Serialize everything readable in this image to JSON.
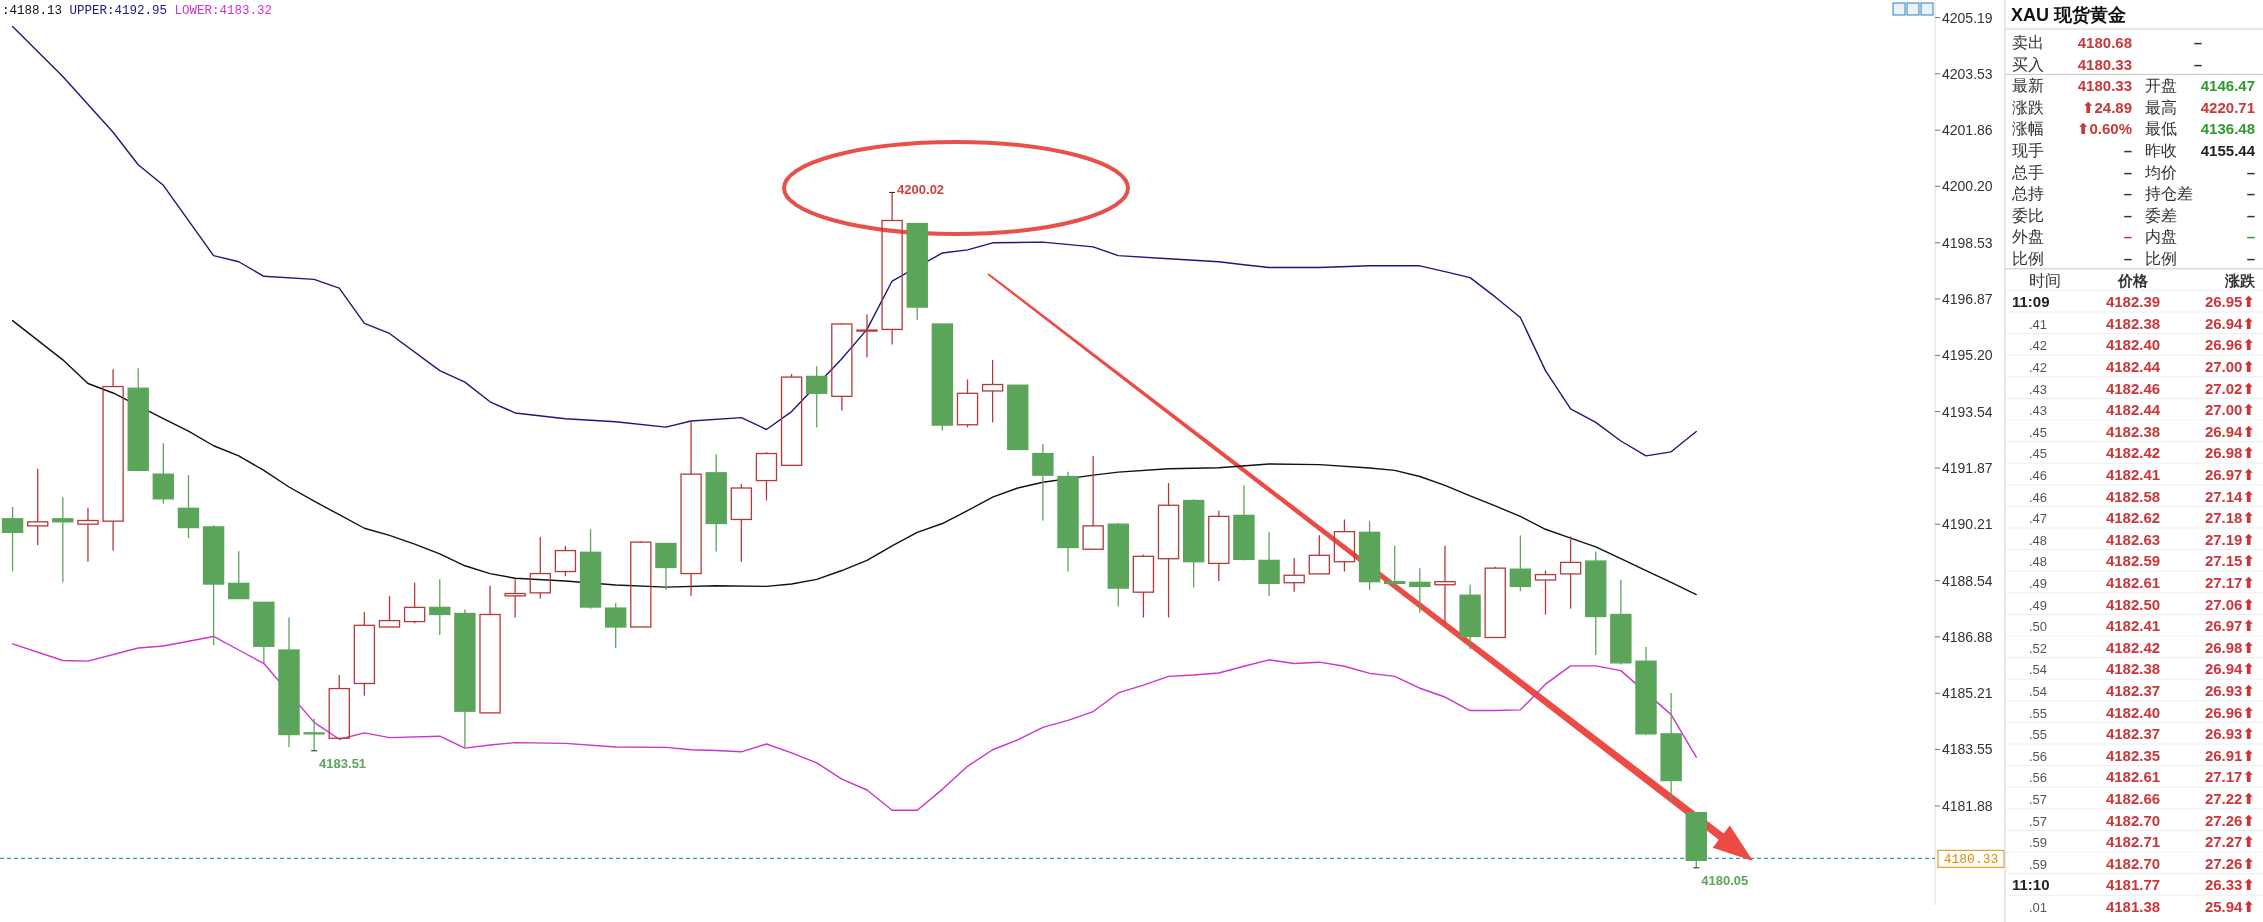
{
  "chart_data": [
    {
      "type": "candlestick",
      "categories": [
        null,
        null,
        null,
        null,
        null,
        null,
        null,
        null,
        null,
        null,
        null,
        null,
        null,
        null,
        null,
        null,
        null,
        null,
        null,
        null,
        null,
        null,
        null,
        null,
        null,
        null,
        null,
        null,
        null,
        null,
        null,
        null,
        null,
        null,
        null,
        null,
        null,
        null,
        null,
        null,
        null,
        null,
        null,
        null,
        null,
        null,
        null,
        null,
        null,
        null,
        null,
        null,
        null,
        null,
        null,
        null,
        null,
        null,
        null,
        null,
        null,
        null,
        null,
        null,
        null,
        null,
        null,
        null,
        null,
        null,
        null,
        null,
        null,
        null,
        null,
        null,
        null
      ],
      "ohlc": [
        [
          4190.37,
          4190.72,
          4188.81,
          4189.97
        ],
        [
          4190.16,
          4191.85,
          4189.59,
          4190.28
        ],
        [
          4190.37,
          4191.01,
          4188.49,
          4190.28
        ],
        [
          4190.21,
          4190.7,
          4189.1,
          4190.32
        ],
        [
          4190.3,
          4194.79,
          4189.43,
          4194.28
        ],
        [
          4194.23,
          4194.82,
          4191.8,
          4191.8
        ],
        [
          4191.69,
          4192.6,
          4190.82,
          4190.96
        ],
        [
          4190.68,
          4191.66,
          4189.8,
          4190.11
        ],
        [
          4190.13,
          4190.18,
          4186.63,
          4188.44
        ],
        [
          4188.46,
          4189.41,
          4188.01,
          4188.01
        ],
        [
          4187.9,
          4187.9,
          4186.09,
          4186.6
        ],
        [
          4186.49,
          4187.45,
          4183.62,
          4183.99
        ],
        [
          4184.04,
          4184.46,
          4183.51,
          4184.03
        ],
        [
          4183.88,
          4185.75,
          4183.88,
          4185.35
        ],
        [
          4185.5,
          4187.61,
          4185.14,
          4187.22
        ],
        [
          4187.17,
          4188.09,
          4187.17,
          4187.36
        ],
        [
          4187.33,
          4188.48,
          4187.28,
          4187.75
        ],
        [
          4187.75,
          4188.58,
          4186.93,
          4187.54
        ],
        [
          4187.57,
          4187.69,
          4183.6,
          4184.68
        ],
        [
          4184.63,
          4188.39,
          4184.63,
          4187.54
        ],
        [
          4188.09,
          4188.58,
          4187.45,
          4188.16
        ],
        [
          4188.18,
          4189.83,
          4188.01,
          4188.75
        ],
        [
          4188.81,
          4189.57,
          4188.67,
          4189.43
        ],
        [
          4189.38,
          4190.06,
          4187.71,
          4187.76
        ],
        [
          4187.73,
          4187.88,
          4186.55,
          4187.17
        ],
        [
          4187.17,
          4189.71,
          4187.17,
          4189.68
        ],
        [
          4189.64,
          4189.64,
          4188.27,
          4188.93
        ],
        [
          4188.75,
          4193.29,
          4188.09,
          4191.69
        ],
        [
          4191.73,
          4192.28,
          4189.4,
          4190.23
        ],
        [
          4190.35,
          4191.4,
          4189.1,
          4191.28
        ],
        [
          4191.5,
          4192.34,
          4190.91,
          4192.3
        ],
        [
          4191.95,
          4194.65,
          4191.95,
          4194.56
        ],
        [
          4194.58,
          4194.88,
          4193.07,
          4194.08
        ],
        [
          4193.99,
          4196.16,
          4193.57,
          4196.13
        ],
        [
          4195.95,
          4196.41,
          4195.14,
          4195.95
        ],
        [
          4195.97,
          4200.02,
          4195.52,
          4199.19
        ],
        [
          4199.1,
          4199.1,
          4196.25,
          4196.63
        ],
        [
          4196.13,
          4196.13,
          4192.98,
          4193.14
        ],
        [
          4193.15,
          4194.49,
          4193.07,
          4194.08
        ],
        [
          4194.15,
          4195.07,
          4193.22,
          4194.34
        ],
        [
          4194.32,
          4194.32,
          4192.42,
          4192.42
        ],
        [
          4192.3,
          4192.58,
          4190.32,
          4191.66
        ],
        [
          4191.62,
          4191.76,
          4188.81,
          4189.52
        ],
        [
          4189.47,
          4192.23,
          4189.47,
          4190.16
        ],
        [
          4190.21,
          4190.25,
          4187.78,
          4188.32
        ],
        [
          4188.2,
          4189.31,
          4187.45,
          4189.26
        ],
        [
          4189.19,
          4191.43,
          4187.45,
          4190.77
        ],
        [
          4190.91,
          4190.95,
          4188.34,
          4189.1
        ],
        [
          4189.05,
          4190.61,
          4188.53,
          4190.44
        ],
        [
          4190.47,
          4191.36,
          4189.14,
          4189.17
        ],
        [
          4189.14,
          4189.97,
          4188.09,
          4188.46
        ],
        [
          4188.48,
          4189.21,
          4188.21,
          4188.7
        ],
        [
          4188.74,
          4189.88,
          4188.74,
          4189.29
        ],
        [
          4189.1,
          4190.35,
          4188.81,
          4189.99
        ],
        [
          4189.97,
          4190.3,
          4188.27,
          4188.51
        ],
        [
          4188.51,
          4189.57,
          4188.32,
          4188.46
        ],
        [
          4188.49,
          4188.91,
          4187.59,
          4188.37
        ],
        [
          4188.42,
          4189.57,
          4187.28,
          4188.51
        ],
        [
          4188.11,
          4188.42,
          4186.51,
          4186.89
        ],
        [
          4186.86,
          4188.95,
          4186.86,
          4188.91
        ],
        [
          4188.88,
          4189.88,
          4188.23,
          4188.37
        ],
        [
          4188.56,
          4188.84,
          4187.54,
          4188.72
        ],
        [
          4188.74,
          4189.85,
          4187.71,
          4189.08
        ],
        [
          4189.12,
          4189.4,
          4186.34,
          4187.48
        ],
        [
          4187.54,
          4188.56,
          4186.06,
          4186.11
        ],
        [
          4186.16,
          4186.58,
          4183.97,
          4184.01
        ],
        [
          4184.01,
          4185.22,
          4181.97,
          4182.63
        ],
        [
          4181.68,
          4181.68,
          4180.05,
          4180.27
        ],
        null,
        null,
        null,
        null,
        null,
        null,
        null,
        null,
        null
      ],
      "series": [
        {
          "type": "line",
          "color": "#111111",
          "values": [
            4196.23,
            null,
            4195.07,
            4194.37,
            4194.09,
            null,
            4193.33,
            4192.96,
            4192.53,
            4192.23,
            4191.8,
            4191.31,
            4190.89,
            4190.49,
            4190.09,
            4189.88,
            4189.62,
            4189.33,
            4188.98,
            4188.75,
            4188.61,
            null,
            4188.53,
            null,
            4188.41,
            null,
            4188.35,
            null,
            4188.39,
            null,
            4188.37,
            4188.44,
            4188.58,
            4188.84,
            4189.14,
            4189.57,
            4189.97,
            4190.23,
            4190.61,
            4191.01,
            4191.28,
            4191.45,
            null,
            4191.66,
            4191.75,
            null,
            4191.85,
            null,
            4191.88,
            null,
            4191.99,
            null,
            4191.97,
            null,
            4191.87,
            4191.8,
            4191.62,
            4191.36,
            4191.05,
            4190.75,
            4190.44,
            4190.06,
            4189.8,
            4189.54,
            4189.19,
            4188.84,
            4188.49,
            4188.13,
            null,
            null,
            null,
            null,
            null,
            null,
            null,
            null,
            null
          ]
        },
        {
          "type": "line",
          "color": "#1a1a7a",
          "values": [
            4204.93,
            null,
            4203.45,
            null,
            4201.8,
            4200.84,
            4200.23,
            null,
            4198.15,
            4197.97,
            4197.54,
            null,
            4197.45,
            4197.19,
            4196.15,
            4195.85,
            null,
            4194.75,
            4194.41,
            4193.83,
            4193.5,
            null,
            4193.33,
            null,
            4193.24,
            null,
            4193.08,
            4193.26,
            null,
            4193.36,
            4193.01,
            4193.54,
            null,
            4195.1,
            4195.97,
            4197.4,
            null,
            4198.23,
            4198.32,
            4198.53,
            null,
            4198.55,
            null,
            4198.41,
            4198.15,
            null,
            4198.06,
            null,
            4197.97,
            4197.88,
            4197.8,
            null,
            4197.8,
            null,
            4197.85,
            4197.85,
            4197.85,
            4197.68,
            4197.5,
            4196.93,
            4196.32,
            4194.75,
            4193.62,
            4193.22,
            4192.67,
            4192.23,
            4192.35,
            4192.95,
            null,
            null,
            null,
            null,
            null,
            null,
            null,
            null,
            null
          ]
        },
        {
          "type": "line",
          "color": "#cc33cc",
          "values": [
            4186.67,
            null,
            4186.18,
            4186.16,
            null,
            4186.55,
            4186.61,
            null,
            4186.89,
            4186.49,
            4186.09,
            null,
            4184.35,
            4183.85,
            4184.04,
            4183.9,
            null,
            4183.94,
            4183.59,
            4183.68,
            4183.75,
            null,
            4183.73,
            null,
            4183.62,
            null,
            4183.61,
            4183.54,
            4183.52,
            4183.48,
            4183.71,
            4183.45,
            4183.15,
            4182.67,
            4182.35,
            4181.75,
            4181.75,
            4182.37,
            4183.05,
            4183.54,
            4183.83,
            4184.2,
            4184.41,
            4184.67,
            4185.22,
            4185.45,
            4185.71,
            4185.75,
            4185.81,
            4186.01,
            4186.2,
            4186.09,
            4186.13,
            4186.01,
            4185.8,
            4185.71,
            4185.36,
            4185.1,
            4184.7,
            4184.7,
            4184.72,
            4185.48,
            4186.02,
            4186.02,
            4185.88,
            null,
            4184.58,
            4183.32,
            null,
            null,
            null,
            null,
            null,
            null,
            null,
            null,
            null
          ]
        }
      ],
      "ylim": [
        4178.95,
        4205.71
      ],
      "yticks": [
        4205.19,
        4203.53,
        4201.86,
        {
          "value": 4200.2,
          "label": "4200.20"
        },
        4198.53,
        4196.87,
        {
          "value": 4195.2,
          "label": "4195.20"
        },
        4193.54,
        4191.87,
        4190.21,
        4188.54,
        4186.88,
        4185.21,
        4183.55,
        4181.88
      ],
      "ref_lines": [
        {
          "axis": "y",
          "value": 4180.33,
          "label": "4180.33",
          "color": "#3a8fb7",
          "line_style": "dashed"
        }
      ],
      "annotations": [
        ":4188.13",
        "UPPER:4192.95",
        "LOWER:4183.32",
        "4200.02",
        "4183.51",
        "4180.05"
      ]
    },
    {
      "type": "other",
      "title": "XAU 现货黄金",
      "cell_labels": [
        [
          "卖出",
          "4180.68",
          "–"
        ],
        [
          "买入",
          "4180.33",
          "–"
        ],
        [
          "最新",
          "4180.33",
          "开盘",
          "4146.47"
        ],
        [
          "涨跌",
          "⬆24.89",
          "最高",
          "4220.71"
        ],
        [
          "涨幅",
          "⬆0.60%",
          "最低",
          "4136.48"
        ],
        [
          "现手",
          "–",
          "昨收",
          "4155.44"
        ],
        [
          "总手",
          "–",
          "均价",
          "–"
        ],
        [
          "总持",
          "–",
          "持仓差",
          "–"
        ],
        [
          "委比",
          "–",
          "委差",
          "–"
        ],
        [
          "外盘",
          "–",
          "内盘",
          "–"
        ],
        [
          "比例",
          "–",
          "比例",
          "–"
        ],
        [
          "时间",
          "价格",
          "涨跌"
        ],
        [
          "11:09",
          "4182.39",
          "26.95⬆"
        ],
        [
          ".41",
          "4182.38",
          "26.94⬆"
        ],
        [
          ".42",
          "4182.40",
          "26.96⬆"
        ],
        [
          ".42",
          "4182.44",
          "27.00⬆"
        ],
        [
          ".43",
          "4182.46",
          "27.02⬆"
        ],
        [
          ".43",
          "4182.44",
          "27.00⬆"
        ],
        [
          ".45",
          "4182.38",
          "26.94⬆"
        ],
        [
          ".45",
          "4182.42",
          "26.98⬆"
        ],
        [
          ".46",
          "4182.41",
          "26.97⬆"
        ],
        [
          ".46",
          "4182.58",
          "27.14⬆"
        ],
        [
          ".47",
          "4182.62",
          "27.18⬆"
        ],
        [
          ".48",
          "4182.63",
          "27.19⬆"
        ],
        [
          ".48",
          "4182.59",
          "27.15⬆"
        ],
        [
          ".49",
          "4182.61",
          "27.17⬆"
        ],
        [
          ".49",
          "4182.50",
          "27.06⬆"
        ],
        [
          ".50",
          "4182.41",
          "26.97⬆"
        ],
        [
          ".52",
          "4182.42",
          "26.98⬆"
        ],
        [
          ".54",
          "4182.38",
          "26.94⬆"
        ],
        [
          ".54",
          "4182.37",
          "26.93⬆"
        ],
        [
          ".55",
          "4182.40",
          "26.96⬆"
        ],
        [
          ".55",
          "4182.37",
          "26.93⬆"
        ],
        [
          ".56",
          "4182.35",
          "26.91⬆"
        ],
        [
          ".56",
          "4182.61",
          "27.17⬆"
        ],
        [
          ".57",
          "4182.66",
          "27.22⬆"
        ],
        [
          ".57",
          "4182.70",
          "27.26⬆"
        ],
        [
          ".59",
          "4182.71",
          "27.27⬆"
        ],
        [
          ".59",
          "4182.70",
          "27.26⬆"
        ],
        [
          "11:10",
          "4181.77",
          "26.33⬆"
        ],
        [
          ".01",
          "4181.38",
          "25.94⬆"
        ]
      ],
      "colors": [
        [
          "#333333",
          "#c8383a",
          "#333333"
        ],
        [
          "#333333",
          "#c8383a",
          "#333333"
        ],
        [
          "#333333",
          "#c8383a",
          "#333333",
          "#2f9a2f"
        ],
        [
          "#333333",
          "#c8383a",
          "#333333",
          "#c8383a"
        ],
        [
          "#333333",
          "#c8383a",
          "#333333",
          "#2f9a2f"
        ],
        [
          "#333333",
          "#333333",
          "#333333",
          "#222222"
        ],
        [
          "#333333",
          "#333333",
          "#333333",
          "#333333"
        ],
        [
          "#333333",
          "#333333",
          "#333333",
          "#333333"
        ],
        [
          "#333333",
          "#333333",
          "#333333",
          "#333333"
        ],
        [
          "#333333",
          "#c8383a",
          "#333333",
          "#2f9a2f"
        ],
        [
          "#333333",
          "#333333",
          "#333333",
          "#333333"
        ],
        [
          "#333333",
          "#333333",
          "#333333"
        ],
        [
          "#222222",
          "#c8383a",
          "#c8383a"
        ],
        [
          "#555555",
          "#c8383a",
          "#c8383a"
        ],
        [
          "#555555",
          "#c8383a",
          "#c8383a"
        ],
        [
          "#555555",
          "#c8383a",
          "#c8383a"
        ],
        [
          "#555555",
          "#c8383a",
          "#c8383a"
        ],
        [
          "#555555",
          "#c8383a",
          "#c8383a"
        ],
        [
          "#555555",
          "#c8383a",
          "#c8383a"
        ],
        [
          "#555555",
          "#c8383a",
          "#c8383a"
        ],
        [
          "#555555",
          "#c8383a",
          "#c8383a"
        ],
        [
          "#555555",
          "#c8383a",
          "#c8383a"
        ],
        [
          "#555555",
          "#c8383a",
          "#c8383a"
        ],
        [
          "#555555",
          "#c8383a",
          "#c8383a"
        ],
        [
          "#555555",
          "#c8383a",
          "#c8383a"
        ],
        [
          "#555555",
          "#c8383a",
          "#c8383a"
        ],
        [
          "#555555",
          "#c8383a",
          "#c8383a"
        ],
        [
          "#555555",
          "#c8383a",
          "#c8383a"
        ],
        [
          "#555555",
          "#c8383a",
          "#c8383a"
        ],
        [
          "#555555",
          "#c8383a",
          "#c8383a"
        ],
        [
          "#555555",
          "#c8383a",
          "#c8383a"
        ],
        [
          "#555555",
          "#c8383a",
          "#c8383a"
        ],
        [
          "#555555",
          "#c8383a",
          "#c8383a"
        ],
        [
          "#555555",
          "#c8383a",
          "#c8383a"
        ],
        [
          "#555555",
          "#c8383a",
          "#c8383a"
        ],
        [
          "#555555",
          "#c8383a",
          "#c8383a"
        ],
        [
          "#555555",
          "#c8383a",
          "#c8383a"
        ],
        [
          "#555555",
          "#c8383a",
          "#c8383a"
        ],
        [
          "#555555",
          "#c8383a",
          "#c8383a"
        ],
        [
          "#222222",
          "#c8383a",
          "#c8383a"
        ],
        [
          "#555555",
          "#c8383a",
          "#c8383a"
        ]
      ]
    }
  ]
}
